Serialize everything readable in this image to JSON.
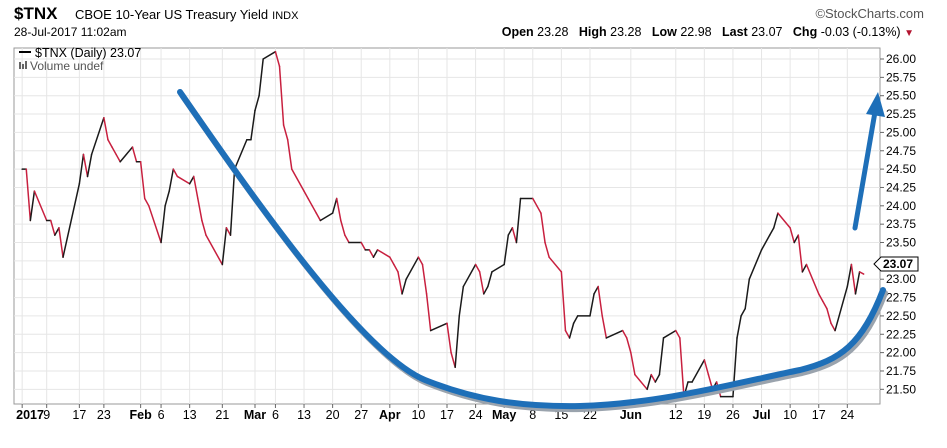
{
  "header": {
    "ticker": "$TNX",
    "description": "CBOE 10-Year US Treasury Yield",
    "exchange": "INDX",
    "brand": "©StockCharts.com",
    "datetime": "28-Jul-2017 11:02am",
    "open_label": "Open",
    "open": "23.28",
    "high_label": "High",
    "high": "23.28",
    "low_label": "Low",
    "low": "22.98",
    "last_label": "Last",
    "last": "23.07",
    "chg_label": "Chg",
    "chg": "-0.03 (-0.13%)"
  },
  "legend": {
    "series_label": "$TNX (Daily) 23.07",
    "volume_label": "Volume undef"
  },
  "last_value_tag": "23.07",
  "colors": {
    "up": "#1a1a1a",
    "down": "#c8203f",
    "arc": "#1e6fb8",
    "grid": "#e6e6e6"
  },
  "chart_data": {
    "type": "line",
    "series": [
      {
        "name": "$TNX (Daily)",
        "x": [
          "2017-01-03",
          "2017-01-04",
          "2017-01-05",
          "2017-01-06",
          "2017-01-09",
          "2017-01-10",
          "2017-01-11",
          "2017-01-12",
          "2017-01-13",
          "2017-01-17",
          "2017-01-18",
          "2017-01-19",
          "2017-01-20",
          "2017-01-23",
          "2017-01-24",
          "2017-01-25",
          "2017-01-26",
          "2017-01-27",
          "2017-01-30",
          "2017-01-31",
          "2017-02-01",
          "2017-02-02",
          "2017-02-03",
          "2017-02-06",
          "2017-02-07",
          "2017-02-08",
          "2017-02-09",
          "2017-02-10",
          "2017-02-13",
          "2017-02-14",
          "2017-02-15",
          "2017-02-16",
          "2017-02-17",
          "2017-02-21",
          "2017-02-22",
          "2017-02-23",
          "2017-02-24",
          "2017-02-27",
          "2017-02-28",
          "2017-03-01",
          "2017-03-02",
          "2017-03-03",
          "2017-03-06",
          "2017-03-07",
          "2017-03-08",
          "2017-03-09",
          "2017-03-10",
          "2017-03-13",
          "2017-03-14",
          "2017-03-15",
          "2017-03-16",
          "2017-03-17",
          "2017-03-20",
          "2017-03-21",
          "2017-03-22",
          "2017-03-23",
          "2017-03-24",
          "2017-03-27",
          "2017-03-28",
          "2017-03-29",
          "2017-03-30",
          "2017-03-31",
          "2017-04-03",
          "2017-04-04",
          "2017-04-05",
          "2017-04-06",
          "2017-04-07",
          "2017-04-10",
          "2017-04-11",
          "2017-04-12",
          "2017-04-13",
          "2017-04-17",
          "2017-04-18",
          "2017-04-19",
          "2017-04-20",
          "2017-04-21",
          "2017-04-24",
          "2017-04-25",
          "2017-04-26",
          "2017-04-27",
          "2017-04-28",
          "2017-05-01",
          "2017-05-02",
          "2017-05-03",
          "2017-05-04",
          "2017-05-05",
          "2017-05-08",
          "2017-05-09",
          "2017-05-10",
          "2017-05-11",
          "2017-05-12",
          "2017-05-15",
          "2017-05-16",
          "2017-05-17",
          "2017-05-18",
          "2017-05-19",
          "2017-05-22",
          "2017-05-23",
          "2017-05-24",
          "2017-05-25",
          "2017-05-26",
          "2017-05-30",
          "2017-05-31",
          "2017-06-01",
          "2017-06-02",
          "2017-06-05",
          "2017-06-06",
          "2017-06-07",
          "2017-06-08",
          "2017-06-09",
          "2017-06-12",
          "2017-06-13",
          "2017-06-14",
          "2017-06-15",
          "2017-06-16",
          "2017-06-19",
          "2017-06-20",
          "2017-06-21",
          "2017-06-22",
          "2017-06-23",
          "2017-06-26",
          "2017-06-27",
          "2017-06-28",
          "2017-06-29",
          "2017-06-30",
          "2017-07-03",
          "2017-07-05",
          "2017-07-06",
          "2017-07-07",
          "2017-07-10",
          "2017-07-11",
          "2017-07-12",
          "2017-07-13",
          "2017-07-14",
          "2017-07-17",
          "2017-07-18",
          "2017-07-19",
          "2017-07-20",
          "2017-07-21",
          "2017-07-24",
          "2017-07-25",
          "2017-07-26",
          "2017-07-27",
          "2017-07-28"
        ],
        "values": [
          24.5,
          24.5,
          23.8,
          24.2,
          23.8,
          23.8,
          23.6,
          23.7,
          23.3,
          24.3,
          24.7,
          24.4,
          24.7,
          25.2,
          24.9,
          24.8,
          24.7,
          24.6,
          24.8,
          24.6,
          24.6,
          24.1,
          24.0,
          23.5,
          24.0,
          24.2,
          24.5,
          24.4,
          24.3,
          24.4,
          24.1,
          23.8,
          23.6,
          23.2,
          23.7,
          23.6,
          24.5,
          24.9,
          24.9,
          25.3,
          25.5,
          26.0,
          26.1,
          25.9,
          25.1,
          24.9,
          24.5,
          24.2,
          24.1,
          24.0,
          23.9,
          23.8,
          23.9,
          24.1,
          23.8,
          23.6,
          23.5,
          23.5,
          23.4,
          23.4,
          23.3,
          23.4,
          23.3,
          23.2,
          23.1,
          22.8,
          23.0,
          23.3,
          23.2,
          22.8,
          22.3,
          22.4,
          22.0,
          21.8,
          22.5,
          22.9,
          23.2,
          23.1,
          22.8,
          22.9,
          23.1,
          23.2,
          23.6,
          23.7,
          23.5,
          24.1,
          24.1,
          24.0,
          23.9,
          23.5,
          23.3,
          23.1,
          22.3,
          22.2,
          22.4,
          22.5,
          22.5,
          22.8,
          22.9,
          22.5,
          22.2,
          22.3,
          22.2,
          22.0,
          21.7,
          21.5,
          21.7,
          21.6,
          21.7,
          22.2,
          22.3,
          22.2,
          21.4,
          21.6,
          21.6,
          21.9,
          21.7,
          21.5,
          21.6,
          21.4,
          21.4,
          22.2,
          22.5,
          22.6,
          23.0,
          23.4,
          23.6,
          23.7,
          23.9,
          23.7,
          23.5,
          23.6,
          23.1,
          23.2,
          22.8,
          22.7,
          22.6,
          22.4,
          22.3,
          22.9,
          23.2,
          22.8,
          23.1,
          23.07
        ]
      }
    ],
    "x_tick_labels": [
      "2017",
      "9",
      "17",
      "23",
      "Feb",
      "6",
      "13",
      "21",
      "Mar",
      "6",
      "13",
      "20",
      "27",
      "Apr",
      "10",
      "17",
      "24",
      "May",
      "8",
      "15",
      "22",
      "Jun",
      "12",
      "19",
      "26",
      "Jul",
      "10",
      "17",
      "24"
    ],
    "y_tick_labels": [
      "21.50",
      "21.75",
      "22.00",
      "22.25",
      "22.50",
      "22.75",
      "23.00",
      "23.25",
      "23.50",
      "23.75",
      "24.00",
      "24.25",
      "24.50",
      "24.75",
      "25.00",
      "25.25",
      "25.50",
      "25.75",
      "26.00"
    ],
    "ylim": [
      21.3,
      26.15
    ],
    "grid": true,
    "y_axis_side": "right"
  }
}
